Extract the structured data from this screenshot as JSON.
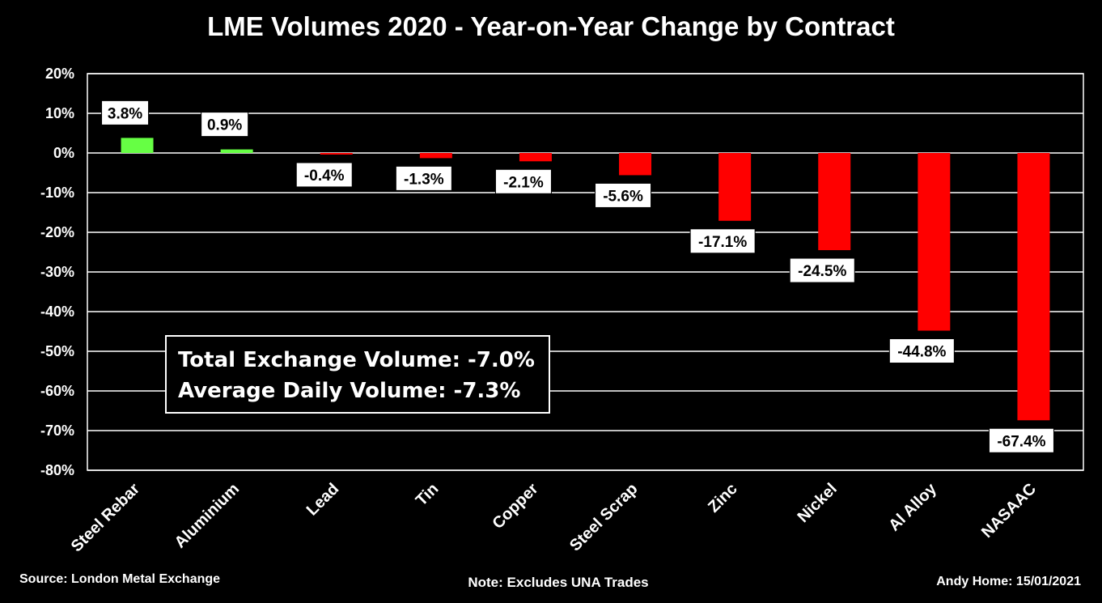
{
  "chart_data": {
    "type": "bar",
    "title": "LME Volumes 2020 - Year-on-Year Change by Contract",
    "categories": [
      "Steel Rebar",
      "Aluminium",
      "Lead",
      "Tin",
      "Copper",
      "Steel Scrap",
      "Zinc",
      "Nickel",
      "Al Alloy",
      "NASAAC"
    ],
    "values": [
      3.8,
      0.9,
      -0.4,
      -1.3,
      -2.1,
      -5.6,
      -17.1,
      -24.5,
      -44.8,
      -67.4
    ],
    "data_labels": [
      "3.8%",
      "0.9%",
      "-0.4%",
      "-1.3%",
      "-2.1%",
      "-5.6%",
      "-17.1%",
      "-24.5%",
      "-44.8%",
      "-67.4%"
    ],
    "ylim": [
      -80,
      20
    ],
    "yticks": [
      20,
      10,
      0,
      -10,
      -20,
      -30,
      -40,
      -50,
      -60,
      -70,
      -80
    ],
    "ytick_labels": [
      "20%",
      "10%",
      "0%",
      "-10%",
      "-20%",
      "-30%",
      "-40%",
      "-50%",
      "-60%",
      "-70%",
      "-80%"
    ],
    "xlabel": "",
    "ylabel": "",
    "grid": true,
    "colors": {
      "positive": "#66ff44",
      "negative": "#ff0000",
      "background": "#000000",
      "gridline": "#ffffff"
    }
  },
  "summary": {
    "total_line": "Total Exchange Volume: -7.0%",
    "daily_line": "Average Daily Volume: -7.3%"
  },
  "footer": {
    "source": "Source: London Metal Exchange",
    "note": "Note: Excludes UNA Trades",
    "author": "Andy Home: 15/01/2021"
  }
}
